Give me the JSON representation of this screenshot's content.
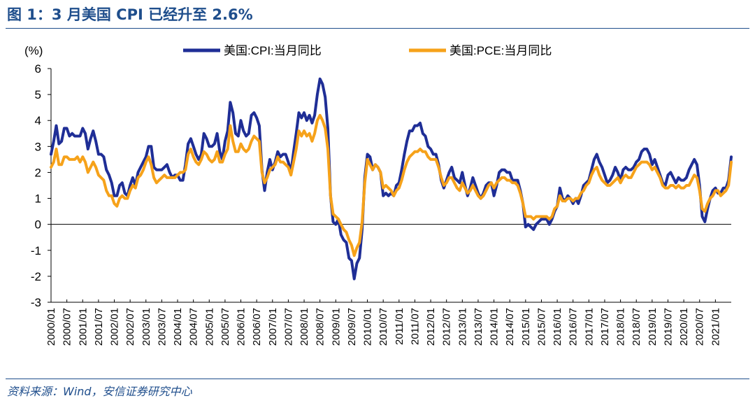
{
  "figure_title": "图 1：3 月美国 CPI 已经升至 2.6%",
  "source": "资料来源：Wind，安信证券研究中心",
  "colors": {
    "cpi": "#1f2e96",
    "pce": "#f6a21a",
    "accent": "#1f4e8c"
  },
  "chart_data": {
    "type": "line",
    "title": "图 1：3 月美国 CPI 已经升至 2.6%",
    "ylabel": "(%)",
    "xlabel": "",
    "ylim": [
      -3,
      6
    ],
    "yticks": [
      -3,
      -2,
      -1,
      0,
      1,
      2,
      3,
      4,
      5,
      6
    ],
    "legend_position": "top",
    "grid": false,
    "x_tick_labels": [
      "2000/01",
      "2000/07",
      "2001/01",
      "2001/07",
      "2002/01",
      "2002/07",
      "2003/01",
      "2003/07",
      "2004/01",
      "2004/07",
      "2005/01",
      "2005/07",
      "2006/01",
      "2006/07",
      "2007/01",
      "2007/07",
      "2008/01",
      "2008/07",
      "2009/01",
      "2009/07",
      "2010/01",
      "2010/07",
      "2011/01",
      "2011/07",
      "2012/01",
      "2012/07",
      "2013/01",
      "2013/07",
      "2014/01",
      "2014/07",
      "2015/01",
      "2015/07",
      "2016/01",
      "2016/07",
      "2017/01",
      "2017/07",
      "2018/01",
      "2018/07",
      "2019/01",
      "2019/07",
      "2020/01",
      "2020/07",
      "2021/01"
    ],
    "series": [
      {
        "name": "美国:CPI:当月同比",
        "color": "#1f2e96",
        "values": [
          2.7,
          3.2,
          3.8,
          3.1,
          3.2,
          3.7,
          3.7,
          3.4,
          3.5,
          3.4,
          3.4,
          3.4,
          3.7,
          3.5,
          2.9,
          3.3,
          3.6,
          3.2,
          2.7,
          2.7,
          2.6,
          2.1,
          1.9,
          1.6,
          1.1,
          1.1,
          1.5,
          1.6,
          1.2,
          1.1,
          1.5,
          1.8,
          1.5,
          2.0,
          2.2,
          2.4,
          2.6,
          3.0,
          3.0,
          2.2,
          2.1,
          2.1,
          2.1,
          2.2,
          2.3,
          2.0,
          1.8,
          1.9,
          1.9,
          1.7,
          1.7,
          2.3,
          3.1,
          3.3,
          3.0,
          2.7,
          2.5,
          2.7,
          3.5,
          3.3,
          3.0,
          3.0,
          3.1,
          3.5,
          2.8,
          2.5,
          3.2,
          3.6,
          4.7,
          4.3,
          3.5,
          3.4,
          4.0,
          3.6,
          3.4,
          3.5,
          4.2,
          4.3,
          4.1,
          3.8,
          2.1,
          1.3,
          2.0,
          2.5,
          2.1,
          2.4,
          2.8,
          2.6,
          2.7,
          2.7,
          2.4,
          2.0,
          2.8,
          3.5,
          4.3,
          4.1,
          4.3,
          4.0,
          4.2,
          3.9,
          4.2,
          5.0,
          5.6,
          5.4,
          4.9,
          3.7,
          1.1,
          0.1,
          0.0,
          0.2,
          -0.4,
          -0.6,
          -0.7,
          -1.3,
          -1.4,
          -2.1,
          -1.5,
          -1.3,
          -0.2,
          1.8,
          2.7,
          2.6,
          2.1,
          2.3,
          2.2,
          2.0,
          1.1,
          1.2,
          1.1,
          1.2,
          1.1,
          1.5,
          1.6,
          2.1,
          2.7,
          3.2,
          3.6,
          3.6,
          3.8,
          3.8,
          3.9,
          3.5,
          3.4,
          3.0,
          2.9,
          2.7,
          2.7,
          2.3,
          1.7,
          1.4,
          1.7,
          2.0,
          2.2,
          1.8,
          1.7,
          1.6,
          2.0,
          1.5,
          1.1,
          1.4,
          1.8,
          1.5,
          1.2,
          1.0,
          1.2,
          1.5,
          1.6,
          1.6,
          1.1,
          1.5,
          2.0,
          2.1,
          2.1,
          2.0,
          2.0,
          1.7,
          1.7,
          1.7,
          1.3,
          0.8,
          -0.1,
          0.0,
          -0.1,
          -0.2,
          0.0,
          0.1,
          0.2,
          0.2,
          0.2,
          0.0,
          0.2,
          0.5,
          0.7,
          1.4,
          1.0,
          0.9,
          1.1,
          1.0,
          0.8,
          1.0,
          0.8,
          1.1,
          1.5,
          1.6,
          1.7,
          2.1,
          2.5,
          2.7,
          2.4,
          2.2,
          1.9,
          1.6,
          1.7,
          1.9,
          2.2,
          2.0,
          1.7,
          2.1,
          2.2,
          2.1,
          2.1,
          2.2,
          2.4,
          2.5,
          2.8,
          2.9,
          2.9,
          2.7,
          2.3,
          2.5,
          2.2,
          1.9,
          1.6,
          1.5,
          1.9,
          2.0,
          1.8,
          1.6,
          1.8,
          1.7,
          1.7,
          1.8,
          2.1,
          2.3,
          2.5,
          2.3,
          1.5,
          0.3,
          0.1,
          0.6,
          1.0,
          1.3,
          1.4,
          1.2,
          1.2,
          1.4,
          1.4,
          1.7,
          2.6
        ]
      },
      {
        "name": "美国:PCE:当月同比",
        "color": "#f6a21a",
        "values": [
          2.2,
          2.4,
          2.9,
          2.3,
          2.3,
          2.6,
          2.6,
          2.5,
          2.5,
          2.5,
          2.6,
          2.4,
          2.6,
          2.4,
          2.0,
          2.2,
          2.4,
          2.2,
          1.9,
          1.8,
          1.7,
          1.3,
          1.1,
          1.1,
          0.8,
          0.7,
          1.0,
          1.1,
          1.0,
          1.0,
          1.3,
          1.5,
          1.4,
          1.8,
          1.9,
          2.1,
          2.4,
          2.6,
          2.3,
          1.8,
          1.6,
          1.7,
          1.8,
          1.9,
          1.8,
          1.8,
          1.8,
          1.8,
          1.9,
          2.0,
          2.0,
          2.1,
          2.7,
          2.9,
          2.6,
          2.4,
          2.3,
          2.5,
          2.8,
          2.7,
          2.5,
          2.4,
          2.5,
          2.8,
          2.4,
          2.4,
          2.7,
          2.9,
          3.8,
          3.2,
          2.8,
          2.8,
          3.1,
          2.9,
          2.8,
          2.9,
          3.2,
          3.4,
          3.3,
          3.2,
          2.0,
          1.6,
          1.8,
          2.1,
          2.2,
          2.3,
          2.6,
          2.4,
          2.4,
          2.3,
          2.2,
          1.9,
          2.4,
          2.9,
          3.6,
          3.4,
          3.6,
          3.4,
          3.5,
          3.2,
          3.5,
          4.0,
          4.2,
          4.0,
          3.7,
          2.9,
          1.1,
          0.4,
          0.3,
          0.2,
          0.0,
          -0.2,
          -0.3,
          -0.6,
          -0.8,
          -1.2,
          -0.9,
          -0.7,
          0.1,
          1.6,
          2.5,
          2.3,
          2.1,
          2.3,
          2.2,
          2.0,
          1.4,
          1.5,
          1.4,
          1.3,
          1.1,
          1.3,
          1.4,
          1.7,
          2.1,
          2.4,
          2.6,
          2.7,
          2.8,
          2.8,
          2.9,
          2.8,
          2.8,
          2.6,
          2.5,
          2.5,
          2.5,
          2.2,
          1.8,
          1.5,
          1.6,
          1.8,
          1.8,
          1.6,
          1.4,
          1.3,
          1.6,
          1.4,
          1.2,
          1.3,
          1.5,
          1.3,
          1.1,
          1.0,
          1.1,
          1.3,
          1.5,
          1.6,
          1.4,
          1.6,
          1.7,
          1.8,
          1.8,
          1.7,
          1.7,
          1.6,
          1.6,
          1.5,
          1.2,
          0.8,
          0.3,
          0.3,
          0.3,
          0.2,
          0.3,
          0.3,
          0.3,
          0.3,
          0.3,
          0.2,
          0.3,
          0.6,
          0.7,
          1.1,
          0.9,
          0.9,
          1.0,
          1.0,
          0.9,
          1.0,
          1.0,
          1.2,
          1.3,
          1.5,
          1.6,
          1.9,
          2.1,
          2.2,
          1.9,
          1.7,
          1.6,
          1.5,
          1.5,
          1.6,
          1.7,
          1.8,
          1.6,
          1.8,
          1.9,
          1.8,
          1.8,
          2.0,
          2.2,
          2.3,
          2.4,
          2.4,
          2.4,
          2.3,
          2.1,
          2.2,
          2.0,
          1.8,
          1.5,
          1.4,
          1.4,
          1.5,
          1.5,
          1.4,
          1.5,
          1.4,
          1.4,
          1.5,
          1.5,
          1.7,
          1.9,
          1.8,
          1.3,
          0.6,
          0.5,
          0.8,
          1.0,
          1.1,
          1.3,
          1.3,
          1.1,
          1.2,
          1.3,
          1.5,
          2.4
        ]
      }
    ]
  }
}
